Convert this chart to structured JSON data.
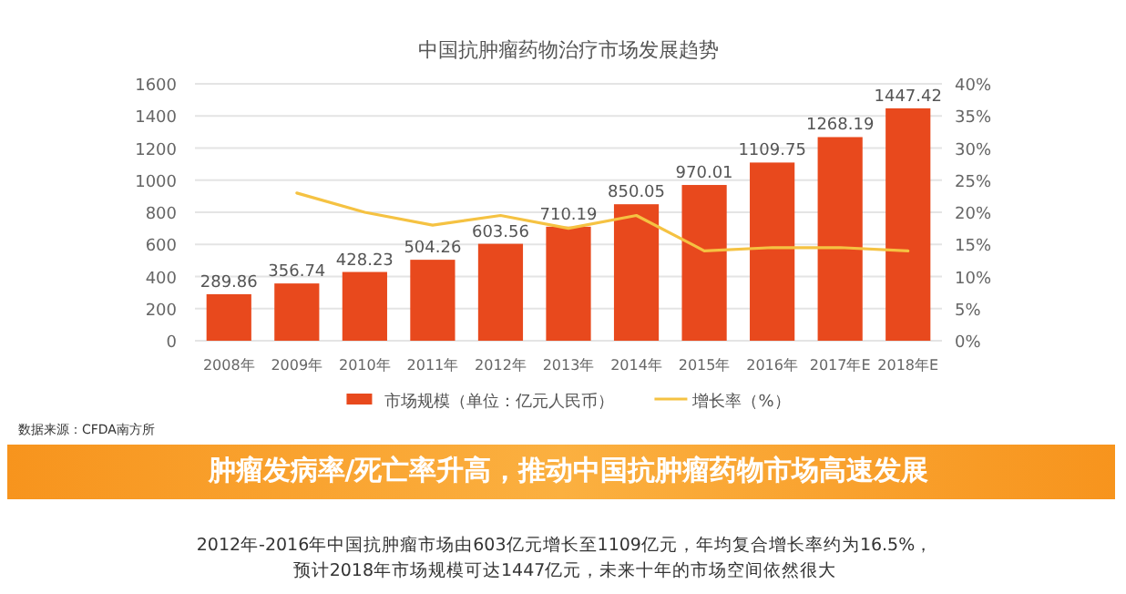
{
  "chart_data": {
    "type": "bar",
    "title": "中国抗肿瘤药物治疗市场发展趋势",
    "categories": [
      "2008年",
      "2009年",
      "2010年",
      "2011年",
      "2012年",
      "2013年",
      "2014年",
      "2015年",
      "2016年",
      "2017年E",
      "2018年E"
    ],
    "series": [
      {
        "name": "市场规模（单位：亿元人民币）",
        "color": "#e8491d",
        "values": [
          289.86,
          356.74,
          428.23,
          504.26,
          603.56,
          710.19,
          850.05,
          970.01,
          1109.75,
          1268.19,
          1447.42
        ],
        "value_labels": [
          "289.86",
          "356.74",
          "428.23",
          "504.26",
          "603.56",
          "710.19",
          "850.05",
          "970.01",
          "1109.75",
          "1268.19",
          "1447.42"
        ]
      },
      {
        "name": "增长率（%）",
        "type": "line",
        "axis": "y2",
        "color": "#f5c242",
        "values": [
          null,
          23,
          20,
          18,
          19.5,
          17.5,
          19.5,
          14,
          14.5,
          14.5,
          14
        ]
      }
    ],
    "ylim": [
      0,
      1600
    ],
    "yticks": [
      0,
      200,
      400,
      600,
      800,
      1000,
      1200,
      1400,
      1600
    ],
    "y2lim": [
      0,
      40
    ],
    "y2ticks": [
      {
        "value": 0,
        "label": "0%"
      },
      {
        "value": 5,
        "label": "5%"
      },
      {
        "value": 10,
        "label": "10%"
      },
      {
        "value": 15,
        "label": "15%"
      },
      {
        "value": 20,
        "label": "20%"
      },
      {
        "value": 25,
        "label": "25%"
      },
      {
        "value": 30,
        "label": "30%"
      },
      {
        "value": 35,
        "label": "35%"
      },
      {
        "value": 40,
        "label": "40%"
      }
    ],
    "grid": "y",
    "legend": "bottom",
    "marker": "none",
    "annotations": [
      "数据来源：CFDA南方所",
      "肿瘤发病率/死亡率升高，推动中国抗肿瘤药物市场高速发展",
      "2012年-2016年中国抗肿瘤市场由603亿元增长至1109亿元，年均复合增长率约为16.5%，",
      "预计2018年市场规模可达1447亿元，未来十年的市场空间依然很大"
    ]
  }
}
